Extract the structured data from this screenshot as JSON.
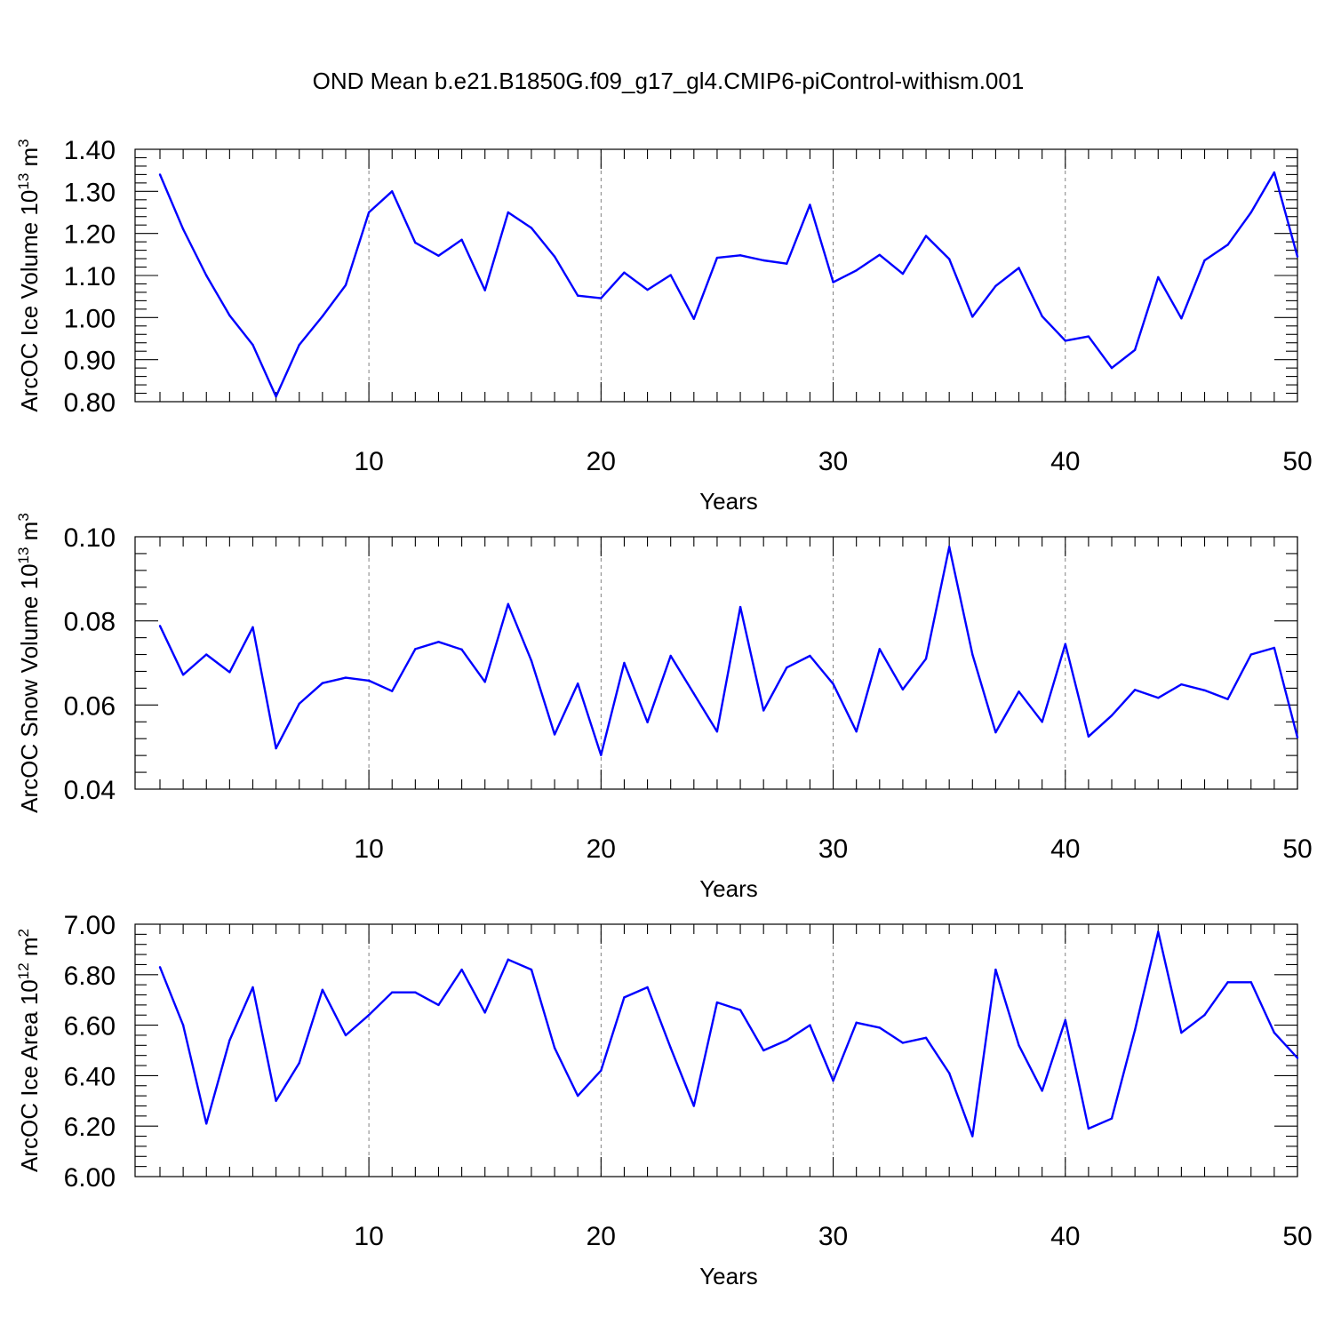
{
  "figure": {
    "title": "OND Mean b.e21.B1850G.f09_g17_gl4.CMIP6-piControl-withism.001"
  },
  "chart_data": [
    {
      "type": "line",
      "xlabel": "Years",
      "ylabel_main": "ArcOC Ice Volume 10",
      "ylabel_exp": "13",
      "ylabel_unit": " m",
      "ylabel_unit_exp": "3",
      "xlim": [
        1,
        50
      ],
      "ylim": [
        0.8,
        1.4
      ],
      "yticks": [
        "0.80",
        "0.90",
        "1.00",
        "1.10",
        "1.20",
        "1.30",
        "1.40"
      ],
      "xticks": [
        "10",
        "20",
        "30",
        "40",
        "50"
      ],
      "grid": "vertical dashed at labeled x ticks",
      "color": "#0000ff",
      "x": [
        1,
        2,
        3,
        4,
        5,
        6,
        7,
        8,
        9,
        10,
        11,
        12,
        13,
        14,
        15,
        16,
        17,
        18,
        19,
        20,
        21,
        22,
        23,
        24,
        25,
        26,
        27,
        28,
        29,
        30,
        31,
        32,
        33,
        34,
        35,
        36,
        37,
        38,
        39,
        40,
        41,
        42,
        43,
        44,
        45,
        46,
        47,
        48,
        49,
        50
      ],
      "values": [
        1.34,
        1.21,
        1.1,
        1.005,
        0.935,
        0.812,
        0.935,
        1.003,
        1.077,
        1.25,
        1.3,
        1.178,
        1.147,
        1.185,
        1.065,
        1.25,
        1.213,
        1.145,
        1.052,
        1.046,
        1.107,
        1.066,
        1.101,
        0.997,
        1.142,
        1.148,
        1.136,
        1.128,
        1.268,
        1.084,
        1.112,
        1.149,
        1.104,
        1.194,
        1.139,
        1.002,
        1.075,
        1.118,
        1.003,
        0.945,
        0.955,
        0.88,
        0.923,
        1.096,
        0.998,
        1.136,
        1.173,
        1.25,
        1.345,
        1.145
      ]
    },
    {
      "type": "line",
      "xlabel": "Years",
      "ylabel_main": "ArcOC Snow Volume 10",
      "ylabel_exp": "13",
      "ylabel_unit": " m",
      "ylabel_unit_exp": "3",
      "xlim": [
        1,
        50
      ],
      "ylim": [
        0.04,
        0.1
      ],
      "yticks": [
        "0.04",
        "0.06",
        "0.08",
        "0.10"
      ],
      "xticks": [
        "10",
        "20",
        "30",
        "40",
        "50"
      ],
      "grid": "vertical dashed at labeled x ticks",
      "color": "#0000ff",
      "x": [
        1,
        2,
        3,
        4,
        5,
        6,
        7,
        8,
        9,
        10,
        11,
        12,
        13,
        14,
        15,
        16,
        17,
        18,
        19,
        20,
        21,
        22,
        23,
        24,
        25,
        26,
        27,
        28,
        29,
        30,
        31,
        32,
        33,
        34,
        35,
        36,
        37,
        38,
        39,
        40,
        41,
        42,
        43,
        44,
        45,
        46,
        47,
        48,
        49,
        50
      ],
      "values": [
        0.0788,
        0.0672,
        0.072,
        0.0678,
        0.0785,
        0.0497,
        0.0603,
        0.0652,
        0.0665,
        0.0658,
        0.0633,
        0.0733,
        0.075,
        0.0732,
        0.0655,
        0.084,
        0.0705,
        0.053,
        0.0651,
        0.0481,
        0.07,
        0.0559,
        0.0717,
        0.0627,
        0.0537,
        0.0833,
        0.0587,
        0.0689,
        0.0717,
        0.065,
        0.0537,
        0.0733,
        0.0637,
        0.071,
        0.0976,
        0.072,
        0.0535,
        0.0632,
        0.056,
        0.0745,
        0.0525,
        0.0575,
        0.0636,
        0.0617,
        0.0649,
        0.0635,
        0.0614,
        0.072,
        0.0736,
        0.0523
      ]
    },
    {
      "type": "line",
      "xlabel": "Years",
      "ylabel_main": "ArcOC Ice Area 10",
      "ylabel_exp": "12",
      "ylabel_unit": " m",
      "ylabel_unit_exp": "2",
      "xlim": [
        1,
        50
      ],
      "ylim": [
        6.0,
        7.0
      ],
      "yticks": [
        "6.00",
        "6.20",
        "6.40",
        "6.60",
        "6.80",
        "7.00"
      ],
      "xticks": [
        "10",
        "20",
        "30",
        "40",
        "50"
      ],
      "grid": "vertical dashed at labeled x ticks",
      "color": "#0000ff",
      "x": [
        1,
        2,
        3,
        4,
        5,
        6,
        7,
        8,
        9,
        10,
        11,
        12,
        13,
        14,
        15,
        16,
        17,
        18,
        19,
        20,
        21,
        22,
        23,
        24,
        25,
        26,
        27,
        28,
        29,
        30,
        31,
        32,
        33,
        34,
        35,
        36,
        37,
        38,
        39,
        40,
        41,
        42,
        43,
        44,
        45,
        46,
        47,
        48,
        49,
        50
      ],
      "values": [
        6.83,
        6.6,
        6.21,
        6.54,
        6.75,
        6.3,
        6.45,
        6.74,
        6.56,
        6.64,
        6.73,
        6.73,
        6.68,
        6.82,
        6.65,
        6.86,
        6.82,
        6.51,
        6.32,
        6.42,
        6.71,
        6.75,
        6.51,
        6.28,
        6.69,
        6.66,
        6.5,
        6.54,
        6.6,
        6.38,
        6.61,
        6.59,
        6.53,
        6.55,
        6.41,
        6.16,
        6.82,
        6.52,
        6.34,
        6.62,
        6.19,
        6.23,
        6.58,
        6.97,
        6.57,
        6.64,
        6.77,
        6.77,
        6.57,
        6.47
      ]
    }
  ]
}
